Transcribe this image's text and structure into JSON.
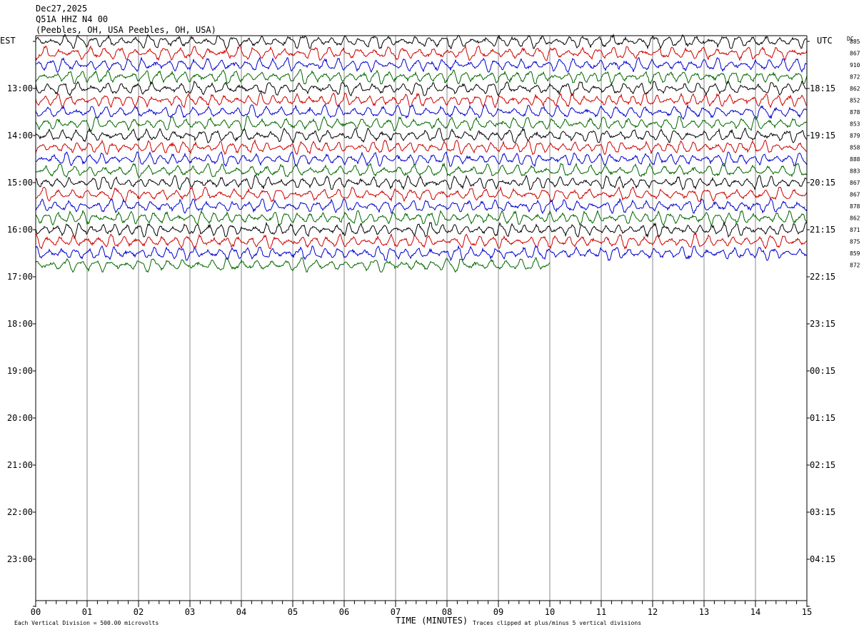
{
  "header": {
    "date": "Dec27,2025",
    "station": "Q51A HHZ N4 00",
    "location": "(Peebles, OH, USA Peebles, OH, USA)"
  },
  "labels": {
    "left_zone": "EST",
    "right_zone": "UTC",
    "dc": "DC",
    "x_title": "TIME (MINUTES)",
    "scale_note": "Each Vertical Division =  500.00 microvolts",
    "clip_note": "Traces clipped at plus/minus 5 vertical divisions"
  },
  "chart_data": {
    "type": "line",
    "title": "Q51A HHZ N4 00",
    "xlabel": "TIME (MINUTES)",
    "xlim": [
      0,
      15
    ],
    "x_ticks": [
      "00",
      "01",
      "02",
      "03",
      "04",
      "05",
      "06",
      "07",
      "08",
      "09",
      "10",
      "11",
      "12",
      "13",
      "14",
      "15"
    ],
    "left_time_labels": [
      "13:00",
      "14:00",
      "15:00",
      "16:00",
      "17:00",
      "18:00",
      "19:00",
      "20:00",
      "21:00",
      "22:00",
      "23:00"
    ],
    "right_time_labels": [
      "18:15",
      "19:15",
      "20:15",
      "21:15",
      "22:15",
      "23:15",
      "00:15",
      "01:15",
      "02:15",
      "03:15",
      "04:15"
    ],
    "trace_colors": [
      "#000000",
      "#cc0000",
      "#0000cc",
      "#006600"
    ],
    "dc_offsets": [
      885,
      867,
      910,
      872,
      862,
      852,
      878,
      853,
      879,
      858,
      888,
      883,
      867,
      867,
      878,
      862,
      871,
      875,
      859,
      872
    ],
    "traces_per_hour": 4,
    "minutes_per_trace": 15,
    "last_trace_end_minute": 10
  }
}
